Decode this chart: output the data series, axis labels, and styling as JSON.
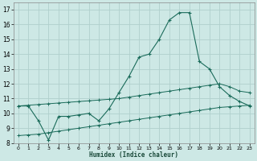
{
  "xlabel": "Humidex (Indice chaleur)",
  "background_color": "#cde8e5",
  "grid_color": "#b0d0cc",
  "line_color": "#1a6b5a",
  "xlim": [
    -0.5,
    23.5
  ],
  "ylim": [
    8,
    17.5
  ],
  "xticks": [
    0,
    1,
    2,
    3,
    4,
    5,
    6,
    7,
    8,
    9,
    10,
    11,
    12,
    13,
    14,
    15,
    16,
    17,
    18,
    19,
    20,
    21,
    22,
    23
  ],
  "yticks": [
    8,
    9,
    10,
    11,
    12,
    13,
    14,
    15,
    16,
    17
  ],
  "line1_x": [
    0,
    1,
    2,
    3,
    4,
    5,
    6,
    7,
    8,
    9,
    10,
    11,
    12,
    13,
    14,
    15,
    16,
    17,
    18,
    19,
    20,
    21,
    22,
    23
  ],
  "line1_y": [
    10.5,
    10.5,
    9.5,
    8.2,
    9.8,
    9.8,
    9.9,
    10.0,
    9.5,
    10.3,
    11.4,
    12.5,
    13.8,
    14.0,
    15.0,
    16.3,
    16.8,
    16.8,
    13.5,
    13.0,
    11.8,
    11.2,
    10.8,
    10.5
  ],
  "line2_x": [
    0,
    1,
    2,
    3,
    4,
    5,
    6,
    7,
    8,
    9,
    10,
    11,
    12,
    13,
    14,
    15,
    16,
    17,
    18,
    19,
    20,
    21,
    22,
    23
  ],
  "line2_y": [
    10.5,
    10.55,
    10.6,
    10.65,
    10.7,
    10.75,
    10.8,
    10.85,
    10.9,
    10.95,
    11.0,
    11.1,
    11.2,
    11.3,
    11.4,
    11.5,
    11.6,
    11.7,
    11.8,
    11.9,
    12.0,
    11.8,
    11.5,
    11.4
  ],
  "line3_x": [
    0,
    1,
    2,
    3,
    4,
    5,
    6,
    7,
    8,
    9,
    10,
    11,
    12,
    13,
    14,
    15,
    16,
    17,
    18,
    19,
    20,
    21,
    22,
    23
  ],
  "line3_y": [
    8.5,
    8.55,
    8.6,
    8.7,
    8.8,
    8.9,
    9.0,
    9.1,
    9.2,
    9.3,
    9.4,
    9.5,
    9.6,
    9.7,
    9.8,
    9.9,
    10.0,
    10.1,
    10.2,
    10.3,
    10.4,
    10.45,
    10.5,
    10.55
  ]
}
